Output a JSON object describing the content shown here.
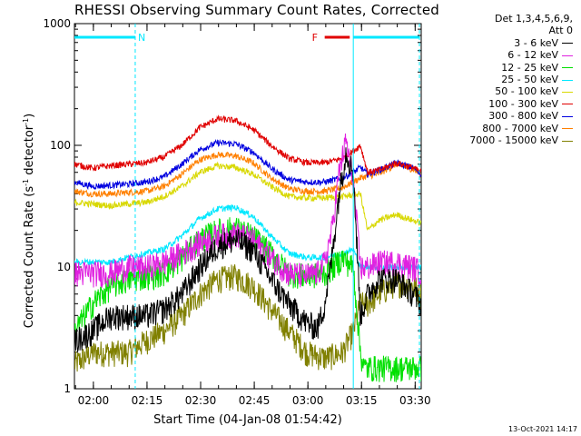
{
  "chart_data": {
    "type": "line",
    "title": "RHESSI Observing Summary Count Rates, Corrected",
    "ylabel_main": "Corrected Count Rate (s",
    "ylabel_sup1": "-1",
    "ylabel_mid": " detector",
    "ylabel_sup2": "-1",
    "ylabel_end": ")",
    "xlabel": "Start Time (04-Jan-08 01:54:42)",
    "y_scale": "log",
    "ylim": [
      1,
      1000
    ],
    "xlim_minutes_after_start": [
      0,
      97
    ],
    "y_ticks": [
      {
        "label": "1",
        "value": 1
      },
      {
        "label": "10",
        "value": 10
      },
      {
        "label": "100",
        "value": 100
      },
      {
        "label": "1000",
        "value": 1000
      }
    ],
    "x_ticks": [
      {
        "label": "02:00",
        "minute": 5.3
      },
      {
        "label": "02:15",
        "minute": 20.3
      },
      {
        "label": "02:30",
        "minute": 35.3
      },
      {
        "label": "02:45",
        "minute": 50.3
      },
      {
        "label": "03:00",
        "minute": 65.3
      },
      {
        "label": "03:15",
        "minute": 80.3
      },
      {
        "label": "03:30",
        "minute": 95.3
      }
    ],
    "legend_header": [
      "Det 1,3,4,5,6,9,",
      "Att 0"
    ],
    "legend_placement": "right-outside",
    "series": [
      {
        "name": "3 - 6 keV",
        "color": "#000000",
        "x": [
          0,
          5,
          10,
          15,
          20,
          25,
          30,
          35,
          40,
          45,
          50,
          55,
          60,
          65,
          68,
          70,
          72,
          74,
          76,
          78,
          80,
          82,
          85,
          90,
          95,
          97
        ],
        "y": [
          2.5,
          3,
          4,
          4,
          4,
          4.5,
          6,
          10,
          15,
          17,
          14,
          8,
          5,
          3.5,
          3.2,
          5,
          12,
          40,
          90,
          60,
          4,
          6,
          8,
          8,
          6,
          5
        ]
      },
      {
        "name": "6 - 12 keV",
        "color": "#e020e0",
        "x": [
          0,
          5,
          10,
          15,
          20,
          25,
          30,
          35,
          40,
          45,
          50,
          55,
          60,
          65,
          68,
          70,
          72,
          74,
          76,
          78,
          80,
          82,
          85,
          90,
          95,
          97
        ],
        "y": [
          9,
          9,
          9,
          10,
          10,
          11,
          13,
          16,
          18,
          19,
          17,
          12,
          9,
          8.5,
          9,
          11,
          20,
          60,
          110,
          50,
          10,
          10,
          11,
          11,
          10,
          9
        ]
      },
      {
        "name": "12 - 25 keV",
        "color": "#00e000",
        "x": [
          0,
          5,
          10,
          15,
          20,
          25,
          30,
          35,
          40,
          45,
          50,
          55,
          60,
          65,
          70,
          72,
          75,
          78,
          80,
          81,
          85,
          90,
          95,
          97
        ],
        "y": [
          3,
          5,
          7,
          8,
          8.5,
          9,
          12,
          17,
          20,
          21,
          18,
          13,
          9,
          8.5,
          9,
          10,
          12,
          10,
          2,
          1.5,
          1.5,
          1.5,
          1.5,
          1.5
        ]
      },
      {
        "name": "25 - 50 keV",
        "color": "#00e8ff",
        "x": [
          0,
          5,
          10,
          15,
          20,
          25,
          30,
          35,
          40,
          45,
          50,
          55,
          60,
          65,
          70,
          75,
          78,
          80,
          82,
          85,
          90,
          95,
          97
        ],
        "y": [
          11,
          11,
          11,
          12,
          13,
          14,
          18,
          25,
          30,
          31,
          26,
          18,
          13,
          12,
          12,
          13,
          14,
          10,
          10,
          10,
          10,
          10,
          10
        ]
      },
      {
        "name": "50 - 100 keV",
        "color": "#d8d800",
        "x": [
          0,
          5,
          10,
          15,
          20,
          25,
          30,
          35,
          40,
          45,
          50,
          55,
          60,
          65,
          70,
          75,
          80,
          82,
          85,
          90,
          95,
          97
        ],
        "y": [
          34,
          33,
          32,
          33,
          34,
          38,
          46,
          60,
          68,
          66,
          58,
          46,
          38,
          37,
          37,
          38,
          40,
          20,
          24,
          27,
          24,
          23
        ]
      },
      {
        "name": "100 - 300 keV",
        "color": "#e00000",
        "x": [
          0,
          5,
          10,
          15,
          20,
          25,
          30,
          35,
          40,
          45,
          50,
          55,
          60,
          65,
          70,
          75,
          78,
          80,
          82,
          85,
          90,
          95,
          97
        ],
        "y": [
          70,
          65,
          68,
          70,
          72,
          80,
          100,
          140,
          165,
          160,
          135,
          100,
          78,
          72,
          72,
          78,
          90,
          100,
          60,
          62,
          72,
          65,
          60
        ]
      },
      {
        "name": "300 - 800 keV",
        "color": "#0000e0",
        "x": [
          0,
          5,
          10,
          15,
          20,
          25,
          30,
          35,
          40,
          45,
          50,
          55,
          60,
          65,
          70,
          75,
          78,
          80,
          82,
          85,
          90,
          95,
          97
        ],
        "y": [
          50,
          46,
          47,
          48,
          50,
          55,
          70,
          92,
          105,
          103,
          88,
          65,
          52,
          50,
          50,
          54,
          60,
          66,
          58,
          62,
          72,
          65,
          58
        ]
      },
      {
        "name": "800 - 7000 keV",
        "color": "#ff8000",
        "x": [
          0,
          5,
          10,
          15,
          20,
          25,
          30,
          35,
          40,
          45,
          50,
          55,
          60,
          65,
          70,
          75,
          78,
          80,
          82,
          85,
          90,
          95,
          97
        ],
        "y": [
          42,
          40,
          40,
          41,
          42,
          46,
          58,
          76,
          84,
          82,
          72,
          54,
          44,
          42,
          42,
          45,
          50,
          54,
          56,
          58,
          70,
          63,
          57
        ]
      },
      {
        "name": "7000 - 15000 keV",
        "color": "#808000",
        "x": [
          0,
          5,
          10,
          15,
          20,
          25,
          30,
          35,
          40,
          45,
          50,
          55,
          60,
          65,
          70,
          75,
          78,
          80,
          82,
          85,
          90,
          95,
          97
        ],
        "y": [
          1.6,
          2,
          2,
          2,
          2.5,
          3,
          4,
          6,
          8,
          8.5,
          7,
          4.5,
          3,
          2,
          1.8,
          2,
          3,
          5,
          5,
          6,
          7.5,
          7,
          6
        ]
      }
    ],
    "bars": [
      {
        "label": "N",
        "color": "#00e8ff",
        "x_start": 0,
        "x_end": 17,
        "label_color": "#00e8ff"
      },
      {
        "label": "",
        "color": "#00e8ff",
        "x_start": 78,
        "x_end": 96.5,
        "label_color": "#00e8ff"
      },
      {
        "label": "F",
        "color": "#e00000",
        "x_start": 70,
        "x_end": 77,
        "label_color": "#e00000"
      }
    ],
    "vertical_markers": [
      {
        "minute": 17,
        "color": "#00e8ff",
        "style": "dashed"
      },
      {
        "minute": 78,
        "color": "#00e8ff",
        "style": "solid"
      },
      {
        "minute": 96.5,
        "color": "#00e8ff",
        "style": "dashed"
      }
    ],
    "grid": false
  },
  "footer": {
    "timestamp": "13-Oct-2021 14:17"
  }
}
